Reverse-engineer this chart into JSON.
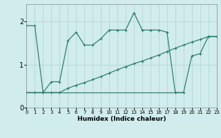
{
  "xlabel": "Humidex (Indice chaleur)",
  "x_values": [
    0,
    1,
    2,
    3,
    4,
    5,
    6,
    7,
    8,
    9,
    10,
    11,
    12,
    13,
    14,
    15,
    16,
    17,
    18,
    19,
    20,
    21,
    22,
    23
  ],
  "line1_x": [
    0,
    1,
    2,
    3,
    4,
    5,
    6,
    7,
    8,
    9,
    10,
    11,
    12,
    13,
    14,
    15,
    16,
    17,
    18,
    19,
    20,
    21,
    22,
    23
  ],
  "line1_y": [
    1.9,
    1.9,
    0.35,
    0.6,
    0.6,
    1.55,
    1.75,
    1.45,
    1.45,
    1.6,
    1.8,
    1.8,
    1.8,
    2.2,
    1.8,
    1.8,
    1.8,
    1.75,
    0.35,
    0.35,
    1.2,
    1.25,
    1.65,
    1.65
  ],
  "line2_x": [
    0,
    1,
    2,
    3,
    4,
    5,
    6,
    7,
    8,
    9,
    10,
    11,
    12,
    13,
    14,
    15,
    16,
    17,
    18,
    19,
    20,
    21,
    22,
    23
  ],
  "line2_y": [
    0.35,
    0.35,
    0.35,
    0.35,
    0.35,
    0.45,
    0.52,
    0.58,
    0.65,
    0.72,
    0.8,
    0.88,
    0.95,
    1.02,
    1.08,
    1.15,
    1.22,
    1.3,
    1.38,
    1.45,
    1.52,
    1.58,
    1.65,
    1.65
  ],
  "line3_x": [
    0,
    1,
    2,
    3,
    4,
    5,
    6,
    7,
    8,
    9,
    10,
    11,
    12,
    13,
    14,
    15,
    16,
    17,
    18,
    19
  ],
  "line3_y": [
    0.35,
    0.35,
    0.35,
    0.35,
    0.35,
    0.35,
    0.35,
    0.35,
    0.35,
    0.35,
    0.35,
    0.35,
    0.35,
    0.35,
    0.35,
    0.35,
    0.35,
    0.35,
    0.35,
    0.35
  ],
  "color": "#2e7d6e",
  "bg_color": "#d0ecec",
  "grid_color": "#b8d4d4",
  "ylim": [
    0,
    2.4
  ],
  "xlim": [
    0,
    23
  ],
  "yticks": [
    0,
    1,
    2
  ],
  "xticks": [
    0,
    1,
    2,
    3,
    4,
    5,
    6,
    7,
    8,
    9,
    10,
    11,
    12,
    13,
    14,
    15,
    16,
    17,
    18,
    19,
    20,
    21,
    22,
    23
  ]
}
